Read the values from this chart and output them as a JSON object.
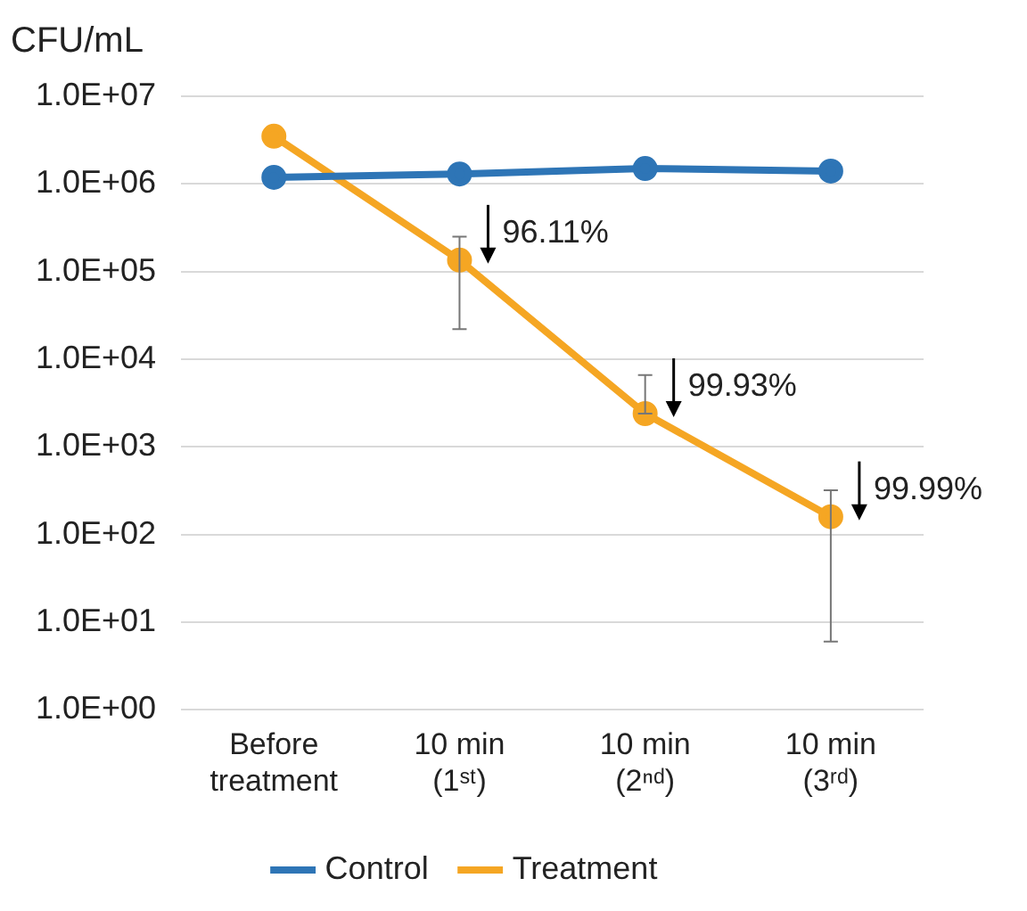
{
  "chart_data": {
    "type": "line",
    "ylabel": "CFU/mL",
    "categories": [
      "Before\ntreatment",
      "10 min\n(1ˢᵗ)",
      "10 min\n(2ⁿᵈ)",
      "10 min\n(3ʳᵈ)"
    ],
    "series": [
      {
        "name": "Control",
        "color": "#2e75b6",
        "values": [
          1190000,
          1300000,
          1500000,
          1400000
        ]
      },
      {
        "name": "Treatment",
        "color": "#f5a623",
        "values": [
          3500000,
          135000,
          2400,
          160
        ],
        "errors": [
          null,
          [
            22000,
            250000
          ],
          [
            2400,
            6600
          ],
          [
            6,
            320
          ]
        ]
      }
    ],
    "log": "y",
    "ylim": [
      1,
      10000000
    ],
    "yticks": [
      {
        "value": 1,
        "label": "1.0E+00"
      },
      {
        "value": 10,
        "label": "1.0E+01"
      },
      {
        "value": 100,
        "label": "1.0E+02"
      },
      {
        "value": 1000,
        "label": "1.0E+03"
      },
      {
        "value": 10000,
        "label": "1.0E+04"
      },
      {
        "value": 100000,
        "label": "1.0E+05"
      },
      {
        "value": 1000000,
        "label": "1.0E+06"
      },
      {
        "value": 10000000,
        "label": "1.0E+07"
      }
    ],
    "grid": "y",
    "legend": "bottom",
    "marker": "circle",
    "line_style": "solid",
    "annotations": [
      {
        "text": "96.11%",
        "x": "10 min\n(1ˢᵗ)",
        "y": 135000
      },
      {
        "text": "99.93%",
        "x": "10 min\n(2ⁿᵈ)",
        "y": 2400
      },
      {
        "text": "99.99%",
        "x": "10 min\n(3ʳᵈ)",
        "y": 160
      }
    ]
  }
}
